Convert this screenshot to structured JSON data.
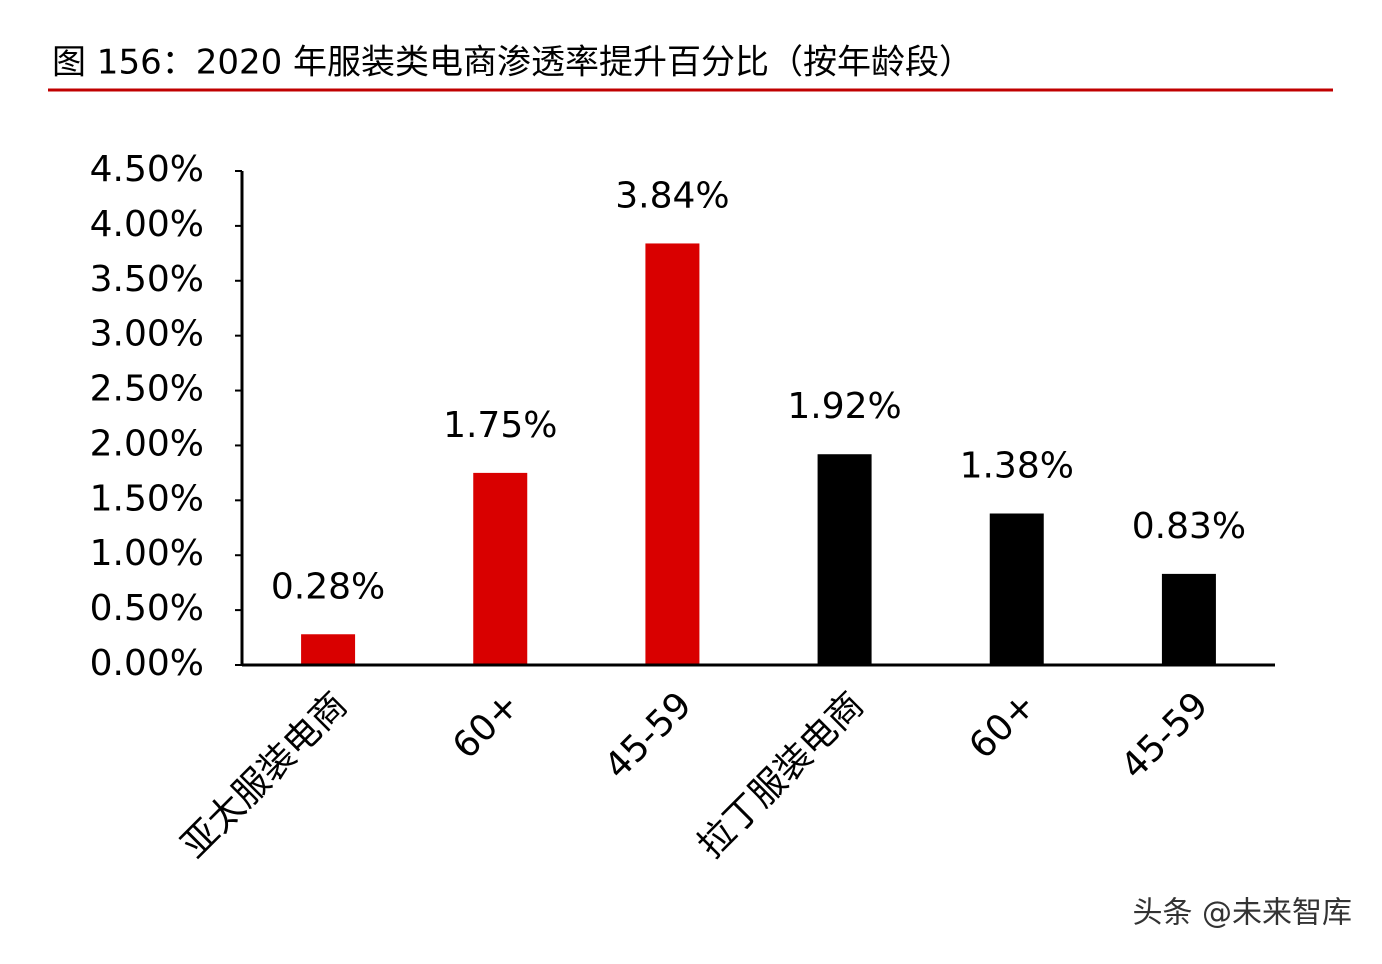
{
  "chart_data": {
    "type": "bar",
    "title": "图 156：2020 年服装类电商渗透率提升百分比（按年龄段）",
    "categories": [
      "亚太服装电商",
      "60+",
      "45-59",
      "拉丁服装电商",
      "60+",
      "45-59"
    ],
    "values": [
      0.28,
      1.75,
      3.84,
      1.92,
      1.38,
      0.83
    ],
    "value_labels": [
      "0.28%",
      "1.75%",
      "3.84%",
      "1.92%",
      "1.38%",
      "0.83%"
    ],
    "colors": [
      "#d90000",
      "#d90000",
      "#d90000",
      "#000000",
      "#000000",
      "#000000"
    ],
    "ylim": [
      0,
      4.5
    ],
    "yticks": [
      {
        "value": 0,
        "label": "0.00%"
      },
      {
        "value": 0.5,
        "label": "0.50%"
      },
      {
        "value": 1,
        "label": "1.00%"
      },
      {
        "value": 1.5,
        "label": "1.50%"
      },
      {
        "value": 2,
        "label": "2.00%"
      },
      {
        "value": 2.5,
        "label": "2.50%"
      },
      {
        "value": 3,
        "label": "3.00%"
      },
      {
        "value": 3.5,
        "label": "3.50%"
      },
      {
        "value": 4,
        "label": "4.00%"
      },
      {
        "value": 4.5,
        "label": "4.50%"
      }
    ],
    "grid": false,
    "watermark": "头条 @未来智库"
  }
}
